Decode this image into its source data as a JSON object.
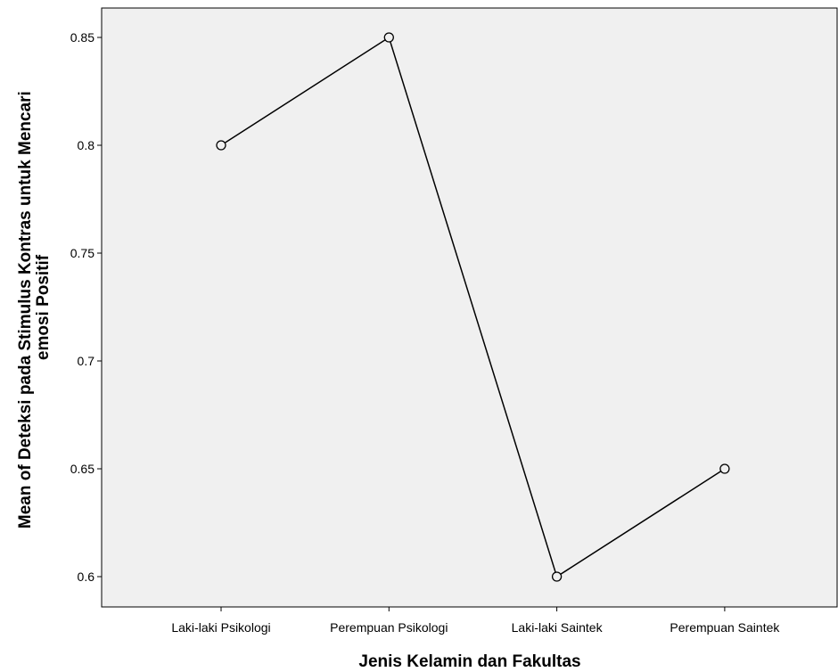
{
  "chart_data": {
    "type": "line",
    "title": "",
    "xlabel": "Jenis Kelamin dan Fakultas",
    "ylabel_lines": [
      "Mean of Deteksi pada Stimulus Kontras untuk Mencari",
      "emosi Positif"
    ],
    "categories": [
      "Laki-laki Psikologi",
      "Perempuan Psikologi",
      "Laki-laki Saintek",
      "Perempuan Saintek"
    ],
    "values": [
      0.8,
      0.85,
      0.6,
      0.65
    ],
    "yticks": [
      "0.6",
      "0.65",
      "0.7",
      "0.75",
      "0.8",
      "0.85"
    ],
    "ylim": [
      0.585,
      0.865
    ],
    "grid": false,
    "marker": "open-circle",
    "colors": {
      "plot_background": "#f0f0f0",
      "line": "#000000",
      "marker_fill": "#f0f0f0"
    }
  }
}
